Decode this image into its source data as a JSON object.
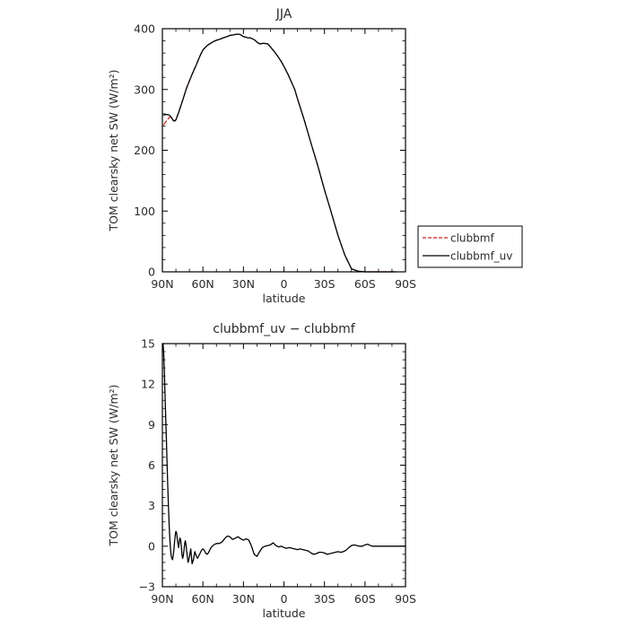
{
  "chart_data": [
    {
      "type": "line",
      "title": "JJA",
      "xlabel": "latitude",
      "ylabel": "TOM clearsky net SW (W/m²)",
      "x_ticks": [
        "90N",
        "60N",
        "30N",
        "0",
        "30S",
        "60S",
        "90S"
      ],
      "x_tick_values": [
        90,
        60,
        30,
        0,
        -30,
        -60,
        -90
      ],
      "y_ticks": [
        "0",
        "100",
        "200",
        "300",
        "400"
      ],
      "xlim": [
        90,
        -90
      ],
      "ylim": [
        0,
        400
      ],
      "legend_position": "right",
      "series": [
        {
          "name": "clubbmf",
          "color": "#cc2222",
          "dash": "dashed",
          "x": [
            89,
            87,
            85,
            84,
            83,
            82,
            81,
            80,
            78,
            75,
            72,
            68,
            65,
            62,
            60,
            57,
            55,
            52,
            50,
            47,
            45,
            42,
            40,
            37,
            35,
            33,
            32,
            30,
            28,
            27,
            25,
            22,
            20,
            18,
            15,
            12,
            10,
            7,
            5,
            2,
            0,
            -3,
            -5,
            -8,
            -10,
            -15,
            -20,
            -25,
            -30,
            -35,
            -40,
            -45,
            -50,
            -55,
            -60,
            -62,
            -64,
            -66,
            -68,
            -70,
            -73,
            -76,
            -80,
            -83
          ],
          "y": [
            242,
            248,
            254,
            255,
            253,
            250,
            248,
            250,
            262,
            282,
            303,
            325,
            340,
            356,
            365,
            372,
            375,
            379,
            381,
            383,
            385,
            387,
            389,
            390,
            391,
            391,
            390,
            387,
            386,
            385,
            385,
            382,
            378,
            375,
            376,
            375,
            370,
            362,
            356,
            346,
            338,
            325,
            315,
            300,
            285,
            250,
            212,
            175,
            135,
            98,
            60,
            28,
            5,
            1,
            0,
            0,
            0,
            0,
            0,
            0,
            0,
            0,
            0,
            0
          ]
        },
        {
          "name": "clubbmf_uv",
          "color": "#000000",
          "dash": "solid",
          "x": [
            89,
            87,
            85,
            84,
            83,
            82,
            81,
            80,
            78,
            75,
            72,
            68,
            65,
            62,
            60,
            57,
            55,
            52,
            50,
            47,
            45,
            42,
            40,
            37,
            35,
            33,
            32,
            30,
            28,
            27,
            25,
            22,
            20,
            18,
            15,
            12,
            10,
            7,
            5,
            2,
            0,
            -3,
            -5,
            -8,
            -10,
            -15,
            -20,
            -25,
            -30,
            -35,
            -40,
            -45,
            -50,
            -55,
            -60,
            -62,
            -64,
            -66,
            -68,
            -70,
            -73,
            -76,
            -80,
            -83
          ],
          "y": [
            258,
            259,
            258,
            256,
            253,
            249,
            248,
            250,
            262,
            282,
            303,
            325,
            340,
            356,
            365,
            372,
            375,
            379,
            381,
            383,
            385,
            387,
            389,
            390,
            391,
            391,
            390,
            387,
            386,
            385,
            385,
            382,
            378,
            375,
            376,
            375,
            370,
            362,
            356,
            346,
            338,
            325,
            315,
            300,
            285,
            250,
            212,
            175,
            135,
            98,
            60,
            28,
            5,
            1,
            0,
            0,
            0,
            0,
            0,
            0,
            0,
            0,
            0,
            0
          ]
        }
      ]
    },
    {
      "type": "line",
      "title": "clubbmf_uv − clubbmf",
      "xlabel": "latitude",
      "ylabel": "TOM clearsky net SW (W/m²)",
      "x_ticks": [
        "90N",
        "60N",
        "30N",
        "0",
        "30S",
        "60S",
        "90S"
      ],
      "x_tick_values": [
        90,
        60,
        30,
        0,
        -30,
        -60,
        -90
      ],
      "y_ticks": [
        "−3",
        "0",
        "3",
        "6",
        "9",
        "12",
        "15"
      ],
      "xlim": [
        90,
        -90
      ],
      "ylim": [
        -3,
        15
      ],
      "series": [
        {
          "color": "#000000",
          "dash": "solid",
          "x": [
            89.5,
            89,
            88.5,
            88,
            87.5,
            87,
            86.5,
            86,
            85.5,
            85,
            84.5,
            84,
            83.5,
            83,
            82.5,
            82,
            81.5,
            81,
            80.5,
            80,
            79.5,
            79,
            78.5,
            78,
            77.5,
            77,
            76.5,
            76,
            75.5,
            75,
            74.5,
            74,
            73.5,
            73,
            72.5,
            72,
            71,
            70,
            69,
            68,
            67,
            66,
            65,
            64,
            63,
            62,
            61,
            60,
            59,
            58,
            57,
            56,
            55,
            54,
            53,
            52,
            51,
            50,
            48,
            46,
            44,
            42,
            40,
            38,
            36,
            34,
            32,
            30,
            28,
            26,
            24,
            22,
            20,
            18,
            16,
            14,
            12,
            10,
            8,
            6,
            4,
            2,
            0,
            -2,
            -4,
            -6,
            -8,
            -10,
            -12,
            -14,
            -16,
            -18,
            -20,
            -22,
            -24,
            -26,
            -28,
            -30,
            -32,
            -34,
            -36,
            -38,
            -40,
            -42,
            -44,
            -46,
            -48,
            -50,
            -52,
            -54,
            -56,
            -58,
            -60,
            -62,
            -64,
            -66,
            -68,
            -70,
            -72,
            -75,
            -80,
            -85,
            -90
          ],
          "y": [
            15.0,
            14.2,
            12.8,
            11.0,
            9.4,
            7.8,
            6.0,
            4.4,
            2.9,
            1.6,
            0.6,
            -0.2,
            -0.7,
            -0.9,
            -1.0,
            -0.7,
            -0.3,
            0.3,
            0.8,
            1.1,
            1.0,
            0.6,
            0.2,
            -0.1,
            0.3,
            0.6,
            0.5,
            0.0,
            -0.6,
            -0.9,
            -0.7,
            -0.3,
            0.2,
            0.4,
            0.1,
            -0.4,
            -1.2,
            -0.8,
            -0.2,
            -1.3,
            -1.0,
            -0.4,
            -0.7,
            -0.9,
            -0.7,
            -0.5,
            -0.3,
            -0.2,
            -0.3,
            -0.5,
            -0.6,
            -0.5,
            -0.3,
            -0.1,
            0.0,
            0.1,
            0.15,
            0.2,
            0.2,
            0.3,
            0.55,
            0.75,
            0.7,
            0.5,
            0.6,
            0.7,
            0.55,
            0.45,
            0.55,
            0.45,
            0.0,
            -0.6,
            -0.75,
            -0.4,
            -0.1,
            0.0,
            0.05,
            0.1,
            0.25,
            0.05,
            -0.05,
            0.0,
            -0.1,
            -0.15,
            -0.1,
            -0.15,
            -0.2,
            -0.25,
            -0.2,
            -0.25,
            -0.3,
            -0.35,
            -0.5,
            -0.6,
            -0.55,
            -0.45,
            -0.45,
            -0.5,
            -0.6,
            -0.55,
            -0.5,
            -0.45,
            -0.4,
            -0.45,
            -0.4,
            -0.3,
            -0.1,
            0.05,
            0.1,
            0.05,
            0.0,
            0.0,
            0.1,
            0.15,
            0.05,
            0.0,
            0.0,
            0.0,
            0.0,
            0.0,
            0.0,
            0.0,
            0.0
          ]
        }
      ]
    }
  ]
}
